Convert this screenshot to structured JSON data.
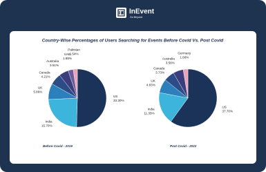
{
  "header": {
    "logo": "InEvent",
    "tagline": "Go Beyond"
  },
  "title": "Country-Wise Percentages of Users Searching for Events Before Covid Vs. Post Covid",
  "chart_data": [
    {
      "type": "pie",
      "title": "Before Covid - 2019",
      "categories": [
        "US",
        "India",
        "UK",
        "Canada",
        "Australia",
        "UAE",
        "Pakistan"
      ],
      "values": [
        33.3,
        15.7,
        5.86,
        4.21,
        3.51,
        1.88,
        1.54
      ],
      "value_labels": [
        "33.30%",
        "15.70%",
        "5.86%",
        "4.21%",
        "3.51%",
        "1.88%",
        "1.54%"
      ],
      "colors": [
        "#1b3358",
        "#3db4dc",
        "#2b80bb",
        "#2c4c88",
        "#3b3d7c",
        "#6b5d9c",
        "#eba3b8"
      ]
    },
    {
      "type": "pie",
      "title": "Post Covid - 2022",
      "categories": [
        "US",
        "India",
        "UK",
        "Canada",
        "Australia",
        "Germany"
      ],
      "values": [
        37.7,
        11.35,
        4.83,
        3.73,
        3.56,
        1.66
      ],
      "value_labels": [
        "37.70%",
        "11.35%",
        "4.83%",
        "3.73%",
        "3.56%",
        "1.66%"
      ],
      "colors": [
        "#1b3358",
        "#3db4dc",
        "#2b80bb",
        "#2c4c88",
        "#3b3d7c",
        "#eba3b8"
      ]
    }
  ]
}
